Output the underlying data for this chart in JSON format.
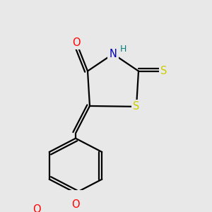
{
  "bg_color": "#e8e8e8",
  "bond_color": "#000000",
  "bond_width": 1.6,
  "atom_colors": {
    "O": "#ff0000",
    "N": "#0000bb",
    "S": "#cccc00",
    "H": "#008080",
    "C": "#000000"
  },
  "font_size": 10.5,
  "fig_size": [
    3.0,
    3.0
  ],
  "dpi": 100
}
